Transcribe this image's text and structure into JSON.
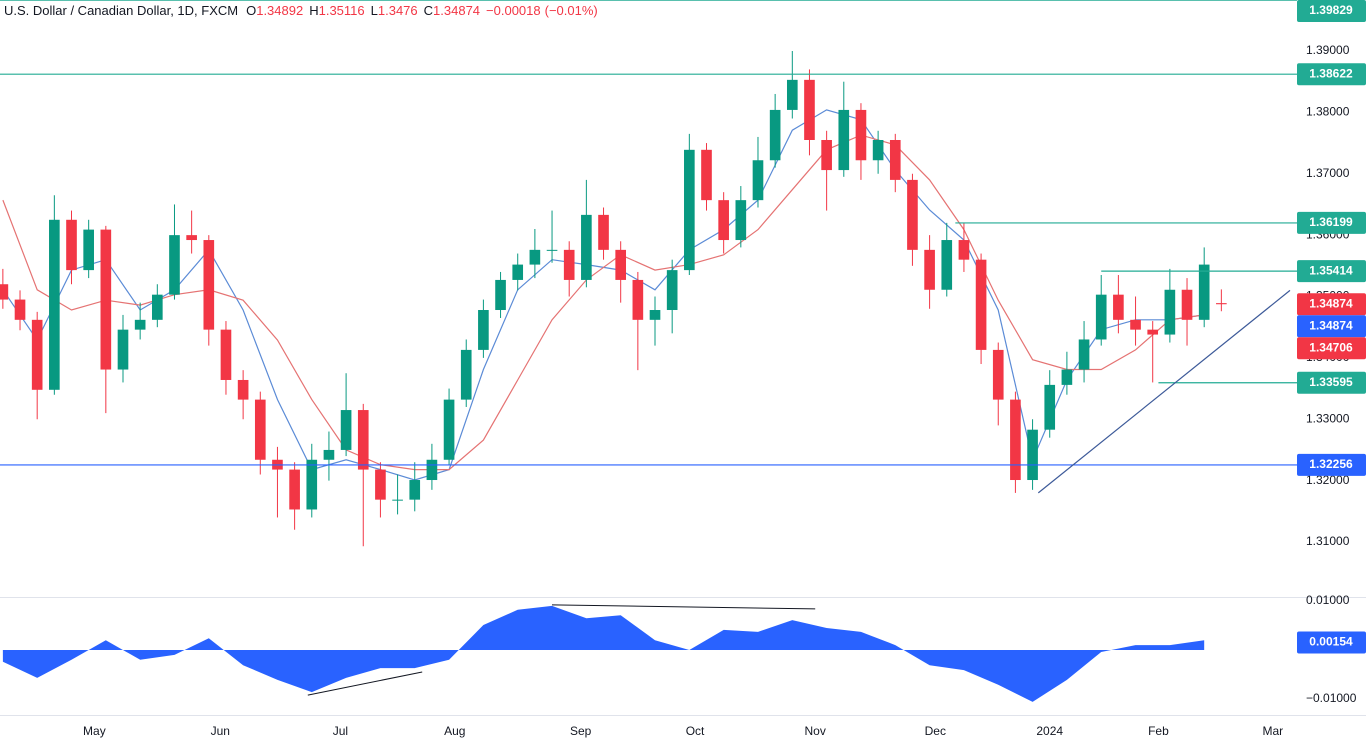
{
  "chart_data": [
    {
      "type": "candlestick",
      "title": "U.S. Dollar / Canadian Dollar, 1D, FXCM",
      "ohlc_header": [
        {
          "label": "O",
          "value": 1.34892
        },
        {
          "label": "H",
          "value": 1.35116
        },
        {
          "label": "L",
          "value": 1.3476
        },
        {
          "label": "C",
          "value": 1.34874
        }
      ],
      "change": {
        "value": -0.00018,
        "label": "−0.00018"
      },
      "change_pct": {
        "value": -0.01,
        "label": "(−0.01%)"
      },
      "up_color": "#089981",
      "down_color": "#f23645",
      "xlim": [
        -0.5,
        225
      ],
      "ylim": [
        1.30104,
        1.39831
      ],
      "yticks": [
        {
          "value": 1.31,
          "label": "1.31000"
        },
        {
          "value": 1.32,
          "label": "1.32000"
        },
        {
          "value": 1.33,
          "label": "1.33000"
        },
        {
          "value": 1.34,
          "label": "1.34000"
        },
        {
          "value": 1.35,
          "label": "1.35000"
        },
        {
          "value": 1.36,
          "label": "1.36000"
        },
        {
          "value": 1.37,
          "label": "1.37000"
        },
        {
          "value": 1.38,
          "label": "1.38000"
        },
        {
          "value": 1.39,
          "label": "1.39000"
        }
      ],
      "x": [
        0,
        3,
        6,
        9,
        12,
        15,
        18,
        21,
        24,
        27,
        30,
        33,
        36,
        39,
        42,
        45,
        48,
        51,
        54,
        57,
        60,
        63,
        66,
        69,
        72,
        75,
        78,
        81,
        84,
        87,
        90,
        93,
        96,
        99,
        102,
        105,
        108,
        111,
        114,
        117,
        120,
        123,
        126,
        129,
        132,
        135,
        138,
        141,
        144,
        147,
        150,
        153,
        156,
        159,
        162,
        165,
        168,
        171,
        174,
        177,
        180,
        183,
        186,
        189,
        192,
        195,
        198,
        201,
        204,
        207,
        210,
        213
      ],
      "open": [
        1.352,
        1.3495,
        1.3462,
        1.3348,
        1.3625,
        1.3543,
        1.3609,
        1.3381,
        1.3446,
        1.3462,
        1.3503,
        1.36,
        1.3592,
        1.3446,
        1.3364,
        1.3332,
        1.3234,
        1.3218,
        1.3153,
        1.3234,
        1.325,
        1.3315,
        1.3218,
        1.3169,
        1.3169,
        1.3201,
        1.3234,
        1.3332,
        1.3413,
        1.3478,
        1.3527,
        1.3552,
        1.3576,
        1.3576,
        1.3527,
        1.3633,
        1.3576,
        1.3527,
        1.3462,
        1.3478,
        1.3543,
        1.3739,
        1.3657,
        1.3592,
        1.3657,
        1.3722,
        1.3804,
        1.3853,
        1.3755,
        1.3706,
        1.3804,
        1.3722,
        1.3755,
        1.369,
        1.3576,
        1.3511,
        1.3592,
        1.356,
        1.3413,
        1.3332,
        1.3201,
        1.3283,
        1.3356,
        1.3381,
        1.343,
        1.3503,
        1.3462,
        1.3446,
        1.3438,
        1.3511,
        1.3462,
        1.34892
      ],
      "high": [
        1.3545,
        1.351,
        1.3475,
        1.3665,
        1.364,
        1.3625,
        1.3615,
        1.347,
        1.349,
        1.352,
        1.365,
        1.364,
        1.36,
        1.346,
        1.338,
        1.3345,
        1.3255,
        1.323,
        1.326,
        1.328,
        1.3375,
        1.3325,
        1.323,
        1.321,
        1.323,
        1.326,
        1.335,
        1.343,
        1.3495,
        1.354,
        1.357,
        1.361,
        1.364,
        1.359,
        1.369,
        1.3645,
        1.359,
        1.354,
        1.35,
        1.356,
        1.3765,
        1.375,
        1.367,
        1.368,
        1.376,
        1.383,
        1.39,
        1.387,
        1.377,
        1.385,
        1.3815,
        1.377,
        1.3765,
        1.37,
        1.36,
        1.362,
        1.362,
        1.357,
        1.3425,
        1.3345,
        1.33,
        1.338,
        1.341,
        1.346,
        1.3535,
        1.3535,
        1.35,
        1.346,
        1.3545,
        1.353,
        1.358,
        1.35116
      ],
      "low": [
        1.348,
        1.3445,
        1.33,
        1.334,
        1.352,
        1.353,
        1.331,
        1.336,
        1.343,
        1.345,
        1.3495,
        1.357,
        1.342,
        1.334,
        1.33,
        1.321,
        1.314,
        1.312,
        1.314,
        1.32,
        1.324,
        1.3093,
        1.314,
        1.3145,
        1.315,
        1.3185,
        1.3225,
        1.332,
        1.34,
        1.3465,
        1.351,
        1.353,
        1.3555,
        1.35,
        1.3515,
        1.356,
        1.349,
        1.338,
        1.342,
        1.344,
        1.3535,
        1.364,
        1.357,
        1.358,
        1.3645,
        1.371,
        1.379,
        1.373,
        1.364,
        1.3695,
        1.369,
        1.37,
        1.367,
        1.355,
        1.348,
        1.35,
        1.354,
        1.339,
        1.329,
        1.318,
        1.3185,
        1.327,
        1.334,
        1.336,
        1.342,
        1.344,
        1.342,
        1.336,
        1.3425,
        1.342,
        1.345,
        1.3476
      ],
      "close": [
        1.3495,
        1.3462,
        1.3348,
        1.3625,
        1.3543,
        1.3609,
        1.3381,
        1.3446,
        1.3462,
        1.3503,
        1.36,
        1.3592,
        1.3446,
        1.3364,
        1.3332,
        1.3234,
        1.3218,
        1.3153,
        1.3234,
        1.325,
        1.3315,
        1.3218,
        1.3169,
        1.3169,
        1.3201,
        1.3234,
        1.3332,
        1.3413,
        1.3478,
        1.3527,
        1.3552,
        1.3576,
        1.3576,
        1.3527,
        1.3633,
        1.3576,
        1.3527,
        1.3462,
        1.3478,
        1.3543,
        1.3739,
        1.3657,
        1.3592,
        1.3657,
        1.3722,
        1.3804,
        1.3853,
        1.3755,
        1.3706,
        1.3804,
        1.3722,
        1.3755,
        1.369,
        1.3576,
        1.3511,
        1.3592,
        1.356,
        1.3413,
        1.3332,
        1.3201,
        1.3283,
        1.3356,
        1.3381,
        1.343,
        1.3503,
        1.3462,
        1.3446,
        1.3438,
        1.3511,
        1.3462,
        1.3552,
        1.34874
      ],
      "lines": [
        {
          "color": "#5b8bd6",
          "x": [
            0,
            6,
            12,
            18,
            24,
            30,
            36,
            42,
            48,
            54,
            60,
            66,
            72,
            78,
            84,
            90,
            96,
            102,
            108,
            114,
            120,
            126,
            132,
            138,
            144,
            150,
            156,
            162,
            168,
            174,
            180,
            186,
            192,
            198,
            204,
            210
          ],
          "values": [
            1.3511,
            1.3429,
            1.3543,
            1.356,
            1.3478,
            1.3511,
            1.3576,
            1.3478,
            1.3332,
            1.3218,
            1.3234,
            1.3218,
            1.3201,
            1.3218,
            1.3381,
            1.3511,
            1.356,
            1.3552,
            1.3543,
            1.3511,
            1.3576,
            1.3609,
            1.3657,
            1.3771,
            1.3804,
            1.3788,
            1.3706,
            1.3641,
            1.3592,
            1.3478,
            1.3234,
            1.3364,
            1.3446,
            1.3462,
            1.3462,
            1.347
          ]
        },
        {
          "color": "#e57373",
          "x": [
            0,
            6,
            12,
            18,
            24,
            30,
            36,
            42,
            48,
            54,
            60,
            66,
            72,
            78,
            84,
            90,
            96,
            102,
            108,
            114,
            120,
            126,
            132,
            138,
            144,
            150,
            156,
            162,
            168,
            174,
            180,
            186,
            192,
            198,
            204,
            210
          ],
          "values": [
            1.3657,
            1.3511,
            1.3478,
            1.3494,
            1.3486,
            1.3503,
            1.3511,
            1.3494,
            1.3429,
            1.3332,
            1.325,
            1.3226,
            1.3218,
            1.3218,
            1.3266,
            1.3364,
            1.3462,
            1.3527,
            1.3568,
            1.3543,
            1.3552,
            1.3568,
            1.3609,
            1.3674,
            1.3739,
            1.3763,
            1.3747,
            1.369,
            1.3609,
            1.3494,
            1.3397,
            1.3381,
            1.3381,
            1.3413,
            1.3462,
            1.347
          ]
        }
      ],
      "levels": [
        {
          "value": 1.39829,
          "color": "#22ab94"
        },
        {
          "value": 1.38622,
          "color": "#22ab94"
        },
        {
          "value": 1.36199,
          "color": "#22ab94",
          "xstart": 166.5
        },
        {
          "value": 1.35414,
          "color": "#22ab94",
          "xstart": 192
        },
        {
          "value": 1.33595,
          "color": "#22ab94",
          "xstart": 202
        },
        {
          "value": 1.32256,
          "color": "#2962ff"
        }
      ],
      "price_labels": [
        {
          "value": 1.34874,
          "color": "#f23645"
        },
        {
          "value": 1.34874,
          "color": "#2962ff"
        },
        {
          "value": 1.34706,
          "color": "#f23645"
        }
      ],
      "trendlines": [
        {
          "color": "#3d5a99",
          "x": [
            181,
            225
          ],
          "values": [
            1.318,
            1.351
          ]
        }
      ]
    },
    {
      "type": "area",
      "color": "#2962ff",
      "xlim": [
        -0.5,
        225
      ],
      "ylim": [
        -0.01327,
        0.01082
      ],
      "yticks": [
        {
          "value": 0.01,
          "label": "0.01000"
        },
        {
          "value": -0.01,
          "label": "−0.01000"
        }
      ],
      "xticks": [
        {
          "value": 16,
          "label": "May"
        },
        {
          "value": 38,
          "label": "Jun"
        },
        {
          "value": 59,
          "label": "Jul"
        },
        {
          "value": 79,
          "label": "Aug"
        },
        {
          "value": 101,
          "label": "Sep"
        },
        {
          "value": 121,
          "label": "Oct"
        },
        {
          "value": 142,
          "label": "Nov"
        },
        {
          "value": 163,
          "label": "Dec"
        },
        {
          "value": 183,
          "label": "2024"
        },
        {
          "value": 202,
          "label": "Feb"
        },
        {
          "value": 222,
          "label": "Mar"
        }
      ],
      "x": [
        0,
        6,
        12,
        18,
        24,
        30,
        36,
        42,
        48,
        54,
        60,
        66,
        72,
        78,
        84,
        90,
        96,
        102,
        108,
        114,
        120,
        126,
        132,
        138,
        144,
        150,
        156,
        162,
        168,
        174,
        180,
        186,
        192,
        198,
        204,
        210
      ],
      "values": [
        -0.0024,
        -0.0057,
        -0.002,
        0.002,
        -0.002,
        -0.001,
        0.0024,
        -0.0031,
        -0.0061,
        -0.0086,
        -0.0057,
        -0.0037,
        -0.0037,
        -0.002,
        0.0051,
        0.0082,
        0.009,
        0.0065,
        0.0071,
        0.002,
        0.0,
        0.0041,
        0.0037,
        0.0061,
        0.0045,
        0.0037,
        0.001,
        -0.0031,
        -0.0041,
        -0.0071,
        -0.0106,
        -0.0061,
        -0.0004,
        0.001,
        0.001,
        0.002
      ],
      "current_value": 0.00154,
      "trendlines": [
        {
          "color": "#131722",
          "x": [
            53.3,
            73.3
          ],
          "values": [
            -0.0092,
            -0.0045
          ]
        },
        {
          "color": "#131722",
          "x": [
            96,
            142
          ],
          "values": [
            0.0092,
            0.0084
          ]
        }
      ]
    }
  ]
}
